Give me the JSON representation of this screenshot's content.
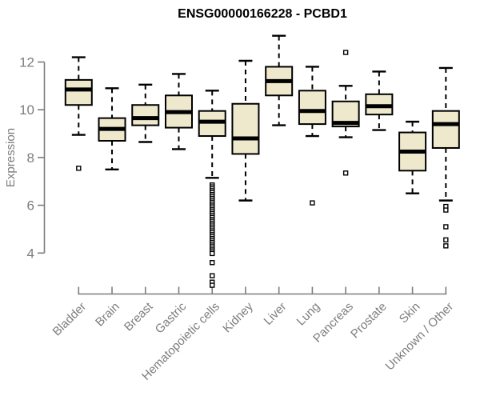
{
  "header": {
    "title": "ENSG00000166228 - PCBD1"
  },
  "chart_data": {
    "type": "boxplot",
    "title": "ENSG00000166228 - PCBD1",
    "xlabel": "",
    "ylabel": "Expression",
    "yticks": [
      4,
      6,
      8,
      10,
      12
    ],
    "ylim": [
      2.5,
      13.3
    ],
    "grid": false,
    "legend": "none",
    "colors": {
      "box_fill": "#EEE8CD",
      "box_stroke": "#000000",
      "median": "#000000",
      "whisker": "#000000",
      "outlier_stroke": "#000000",
      "outlier_fill": "#ffffff",
      "axis": "#7d7d7d",
      "tick_text": "#7d7d7d",
      "title_text": "#000000"
    },
    "categories": [
      "Bladder",
      "Brain",
      "Breast",
      "Gastric",
      "Hematopoietic cells",
      "Kidney",
      "Liver",
      "Lung",
      "Pancreas",
      "Prostate",
      "Skin",
      "Unknown / Other"
    ],
    "boxes": [
      {
        "category": "Bladder",
        "whisker_low": 8.95,
        "q1": 10.2,
        "median": 10.85,
        "q3": 11.25,
        "whisker_high": 12.2,
        "outliers": [
          7.55
        ]
      },
      {
        "category": "Brain",
        "whisker_low": 7.5,
        "q1": 8.7,
        "median": 9.2,
        "q3": 9.65,
        "whisker_high": 10.9,
        "outliers": []
      },
      {
        "category": "Breast",
        "whisker_low": 8.65,
        "q1": 9.35,
        "median": 9.65,
        "q3": 10.2,
        "whisker_high": 11.05,
        "outliers": []
      },
      {
        "category": "Gastric",
        "whisker_low": 8.35,
        "q1": 9.25,
        "median": 9.9,
        "q3": 10.6,
        "whisker_high": 11.5,
        "outliers": []
      },
      {
        "category": "Hematopoietic cells",
        "whisker_low": 7.15,
        "q1": 8.9,
        "median": 9.5,
        "q3": 9.95,
        "whisker_high": 10.8,
        "outliers": [
          6.85,
          6.77,
          6.69,
          6.61,
          6.53,
          6.45,
          6.37,
          6.29,
          6.21,
          6.13,
          6.05,
          5.97,
          5.89,
          5.81,
          5.73,
          5.65,
          5.57,
          5.49,
          5.41,
          5.33,
          5.25,
          5.17,
          5.09,
          5.01,
          4.93,
          4.85,
          4.77,
          4.69,
          4.61,
          4.53,
          4.45,
          4.37,
          4.29,
          4.21,
          4.13,
          4.05,
          3.98,
          3.6,
          3.05,
          2.78,
          2.65
        ]
      },
      {
        "category": "Kidney",
        "whisker_low": 6.2,
        "q1": 8.15,
        "median": 8.8,
        "q3": 10.25,
        "whisker_high": 12.05,
        "outliers": []
      },
      {
        "category": "Liver",
        "whisker_low": 9.35,
        "q1": 10.6,
        "median": 11.2,
        "q3": 11.8,
        "whisker_high": 13.1,
        "outliers": []
      },
      {
        "category": "Lung",
        "whisker_low": 8.9,
        "q1": 9.4,
        "median": 9.95,
        "q3": 10.8,
        "whisker_high": 11.8,
        "outliers": [
          6.1
        ]
      },
      {
        "category": "Pancreas",
        "whisker_low": 8.85,
        "q1": 9.3,
        "median": 9.45,
        "q3": 10.35,
        "whisker_high": 11.0,
        "outliers": [
          12.4,
          7.35
        ]
      },
      {
        "category": "Prostate",
        "whisker_low": 9.15,
        "q1": 9.8,
        "median": 10.15,
        "q3": 10.65,
        "whisker_high": 11.6,
        "outliers": []
      },
      {
        "category": "Skin",
        "whisker_low": 6.5,
        "q1": 7.45,
        "median": 8.25,
        "q3": 9.05,
        "whisker_high": 9.5,
        "outliers": []
      },
      {
        "category": "Unknown / Other",
        "whisker_low": 6.2,
        "q1": 8.4,
        "median": 9.4,
        "q3": 9.95,
        "whisker_high": 11.75,
        "outliers": [
          5.95,
          5.8,
          5.1,
          4.55,
          4.3
        ]
      }
    ]
  }
}
